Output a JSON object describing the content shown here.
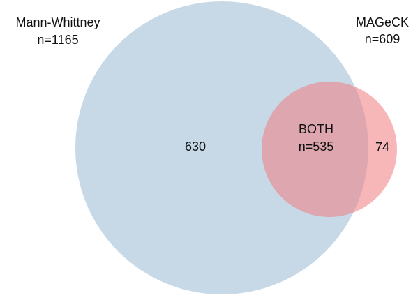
{
  "chart_data": {
    "type": "venn",
    "series": [
      {
        "name": "Mann-Whittney",
        "color": "#c7d9e7",
        "values": [
          1165
        ],
        "value_labels": [
          "n=1165"
        ]
      },
      {
        "name": "MAGeCK",
        "color": "#f07c80",
        "values": [
          609
        ],
        "value_labels": [
          "n=609"
        ]
      }
    ],
    "overlap": {
      "name": "BOTH",
      "values": [
        535
      ],
      "value_labels": [
        "n=535"
      ]
    },
    "exclusive": {
      "values": [
        630,
        74
      ]
    }
  }
}
